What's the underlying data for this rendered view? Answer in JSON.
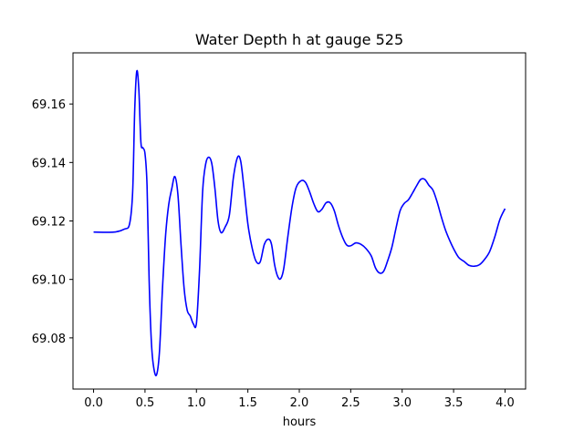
{
  "chart_data": {
    "type": "line",
    "title": "Water Depth h at gauge 525",
    "xlabel": "hours",
    "ylabel": "",
    "xlim": [
      -0.2,
      4.2
    ],
    "ylim": [
      69.0625,
      69.1775
    ],
    "grid": false,
    "x_ticks": [
      0.0,
      0.5,
      1.0,
      1.5,
      2.0,
      2.5,
      3.0,
      3.5,
      4.0
    ],
    "x_tick_labels": [
      "0.0",
      "0.5",
      "1.0",
      "1.5",
      "2.0",
      "2.5",
      "3.0",
      "3.5",
      "4.0"
    ],
    "y_ticks": [
      69.08,
      69.1,
      69.12,
      69.14,
      69.16
    ],
    "y_tick_labels": [
      "69.08",
      "69.10",
      "69.12",
      "69.14",
      "69.16"
    ],
    "series": [
      {
        "color": "#0000ff",
        "x": [
          0.0,
          0.2,
          0.3,
          0.35,
          0.38,
          0.4,
          0.42,
          0.44,
          0.46,
          0.48,
          0.5,
          0.52,
          0.54,
          0.56,
          0.58,
          0.61,
          0.64,
          0.67,
          0.7,
          0.73,
          0.76,
          0.79,
          0.82,
          0.85,
          0.88,
          0.91,
          0.94,
          0.97,
          1.0,
          1.03,
          1.06,
          1.09,
          1.12,
          1.15,
          1.18,
          1.21,
          1.24,
          1.28,
          1.32,
          1.36,
          1.4,
          1.43,
          1.46,
          1.5,
          1.54,
          1.58,
          1.62,
          1.66,
          1.7,
          1.73,
          1.76,
          1.79,
          1.82,
          1.85,
          1.89,
          1.93,
          1.97,
          2.02,
          2.06,
          2.1,
          2.14,
          2.18,
          2.22,
          2.26,
          2.3,
          2.34,
          2.38,
          2.42,
          2.46,
          2.5,
          2.55,
          2.6,
          2.65,
          2.7,
          2.74,
          2.78,
          2.82,
          2.86,
          2.9,
          2.94,
          2.98,
          3.02,
          3.06,
          3.1,
          3.14,
          3.18,
          3.22,
          3.26,
          3.3,
          3.34,
          3.38,
          3.42,
          3.46,
          3.5,
          3.55,
          3.6,
          3.65,
          3.7,
          3.75,
          3.8,
          3.85,
          3.9,
          3.95,
          4.0
        ],
        "values": [
          69.1162,
          69.1162,
          69.1172,
          69.119,
          69.13,
          69.158,
          69.1712,
          69.165,
          69.147,
          69.145,
          69.143,
          69.132,
          69.1,
          69.08,
          69.071,
          69.0672,
          69.075,
          69.097,
          69.115,
          69.1255,
          69.131,
          69.1352,
          69.129,
          69.112,
          69.097,
          69.0895,
          69.0875,
          69.0848,
          69.085,
          69.103,
          69.13,
          69.1395,
          69.1418,
          69.1395,
          69.131,
          69.12,
          69.116,
          69.118,
          69.122,
          69.135,
          69.1418,
          69.1405,
          69.132,
          69.119,
          69.111,
          69.1062,
          69.106,
          69.112,
          69.1138,
          69.112,
          69.105,
          69.101,
          69.1003,
          69.104,
          69.115,
          69.125,
          69.1315,
          69.1338,
          69.1332,
          69.13,
          69.126,
          69.1232,
          69.124,
          69.1262,
          69.1262,
          69.1235,
          69.1185,
          69.1145,
          69.1118,
          69.1115,
          69.1125,
          69.112,
          69.1105,
          69.108,
          69.104,
          69.1022,
          69.1028,
          69.1065,
          69.111,
          69.1175,
          69.1235,
          69.126,
          69.1272,
          69.1295,
          69.132,
          69.1342,
          69.1342,
          69.1322,
          69.1305,
          69.1265,
          69.1215,
          69.117,
          69.1135,
          69.1105,
          69.1075,
          69.1062,
          69.1048,
          69.1045,
          69.105,
          69.1068,
          69.1095,
          69.1145,
          69.1205,
          69.1242
        ]
      }
    ]
  }
}
